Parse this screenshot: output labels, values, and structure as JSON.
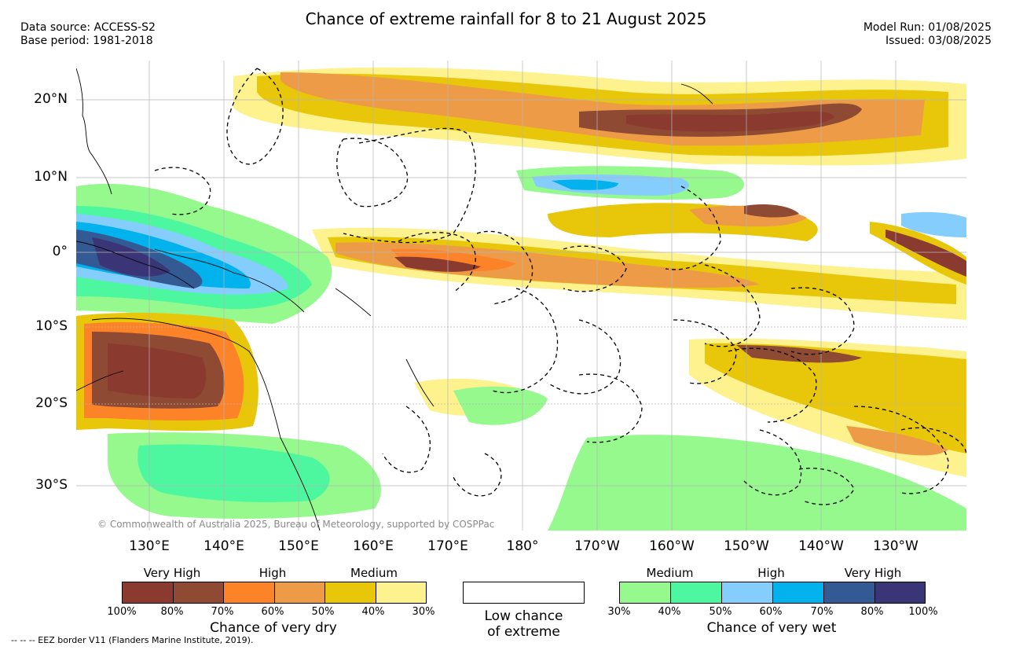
{
  "header": {
    "title": "Chance of extreme rainfall for 8 to 21 August 2025",
    "data_source": "Data source: ACCESS-S2",
    "base_period": "Base period: 1981-2018",
    "model_run": "Model Run: 01/08/2025",
    "issued": "Issued: 03/08/2025"
  },
  "map": {
    "latitude_labels": [
      "20°N",
      "10°N",
      "0°",
      "10°S",
      "20°S",
      "30°S"
    ],
    "longitude_labels": [
      "130°E",
      "140°E",
      "150°E",
      "160°E",
      "170°E",
      "180°",
      "170°W",
      "160°W",
      "150°W",
      "140°W",
      "130°W"
    ],
    "copyright": "© Commonwealth of Australia 2025, Bureau of Meteorology, supported by COSPPac"
  },
  "legend": {
    "dry": {
      "category_labels": [
        "Very High",
        "High",
        "Medium"
      ],
      "tick_labels": [
        "100%",
        "80%",
        "70%",
        "60%",
        "50%",
        "40%",
        "30%"
      ],
      "colors": [
        "#8b3a2f",
        "#8e4a33",
        "#fd8329",
        "#ee9b47",
        "#e8c60a",
        "#fdf28d"
      ],
      "title": "Chance of very dry"
    },
    "neutral": {
      "line1": "Low chance",
      "line2": "of extreme",
      "color": "#ffffff"
    },
    "wet": {
      "category_labels": [
        "Medium",
        "High",
        "Very High"
      ],
      "tick_labels": [
        "30%",
        "40%",
        "50%",
        "60%",
        "70%",
        "80%",
        "100%"
      ],
      "colors": [
        "#95f98d",
        "#4cf79f",
        "#85cdfd",
        "#01b2ed",
        "#345a93",
        "#3a3576"
      ],
      "title": "Chance of very wet"
    }
  },
  "footnote": "-- -- -- EEZ border V11 (Flanders Marine Institute, 2019)."
}
